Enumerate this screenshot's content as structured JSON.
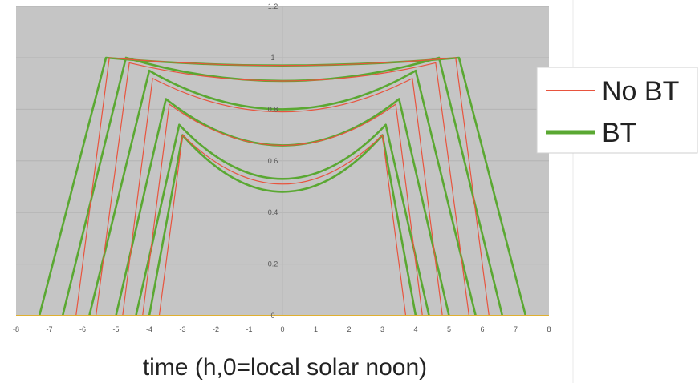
{
  "chart_data": {
    "type": "line",
    "title": "",
    "xlabel": "time (h,0=local solar noon)",
    "ylabel": "",
    "xlim": [
      -8,
      8
    ],
    "ylim": [
      0,
      1.0
    ],
    "x_ticks": [
      -8,
      -7,
      -6,
      -5,
      -4,
      -3,
      -2,
      -1,
      0,
      1,
      2,
      3,
      4,
      5,
      6,
      7,
      8
    ],
    "y_ticks": [
      0,
      0.2,
      0.4,
      0.6,
      0.8,
      1
    ],
    "y_tick_labels": [
      "0",
      "0.2",
      "0.4",
      "0.6",
      "0.8",
      "1"
    ],
    "y_top_label": "1.2",
    "grid": true,
    "legend_position": "right",
    "colors": {
      "plot_bg": "#c5c5c5",
      "no_bt": "#e8543e",
      "bt": "#5aa832",
      "axis": "#e0b030"
    },
    "series": [
      {
        "name": "No BT",
        "color": "#e8543e",
        "curves": [
          [
            [
              -6.2,
              0
            ],
            [
              -5.2,
              1
            ],
            [
              0,
              0.97
            ],
            [
              5.2,
              1
            ],
            [
              6.2,
              0
            ]
          ],
          [
            [
              -5.6,
              0
            ],
            [
              -4.6,
              0.98
            ],
            [
              0,
              0.91
            ],
            [
              4.6,
              0.98
            ],
            [
              5.6,
              0
            ]
          ],
          [
            [
              -4.8,
              0
            ],
            [
              -3.9,
              0.92
            ],
            [
              0,
              0.79
            ],
            [
              3.9,
              0.92
            ],
            [
              4.8,
              0
            ]
          ],
          [
            [
              -4.2,
              0
            ],
            [
              -3.4,
              0.82
            ],
            [
              0,
              0.66
            ],
            [
              3.4,
              0.82
            ],
            [
              4.2,
              0
            ]
          ],
          [
            [
              -3.7,
              0
            ],
            [
              -3.0,
              0.7
            ],
            [
              0,
              0.51
            ],
            [
              3.0,
              0.7
            ],
            [
              3.7,
              0
            ]
          ]
        ]
      },
      {
        "name": "BT",
        "color": "#5aa832",
        "curves": [
          [
            [
              -7.3,
              0
            ],
            [
              -5.3,
              1
            ],
            [
              0,
              0.97
            ],
            [
              5.3,
              1
            ],
            [
              7.3,
              0
            ]
          ],
          [
            [
              -6.6,
              0
            ],
            [
              -4.7,
              1
            ],
            [
              0,
              0.91
            ],
            [
              4.7,
              1
            ],
            [
              6.6,
              0
            ]
          ],
          [
            [
              -5.8,
              0
            ],
            [
              -4.0,
              0.95
            ],
            [
              0,
              0.8
            ],
            [
              4.0,
              0.95
            ],
            [
              5.8,
              0
            ]
          ],
          [
            [
              -5.0,
              0
            ],
            [
              -3.5,
              0.84
            ],
            [
              0,
              0.66
            ],
            [
              3.5,
              0.84
            ],
            [
              5.0,
              0
            ]
          ],
          [
            [
              -4.4,
              0
            ],
            [
              -3.1,
              0.74
            ],
            [
              0,
              0.53
            ],
            [
              3.1,
              0.74
            ],
            [
              4.4,
              0
            ]
          ],
          [
            [
              -4.0,
              0
            ],
            [
              -3.0,
              0.7
            ],
            [
              0,
              0.48
            ],
            [
              3.0,
              0.7
            ],
            [
              4.0,
              0
            ]
          ]
        ]
      }
    ]
  }
}
